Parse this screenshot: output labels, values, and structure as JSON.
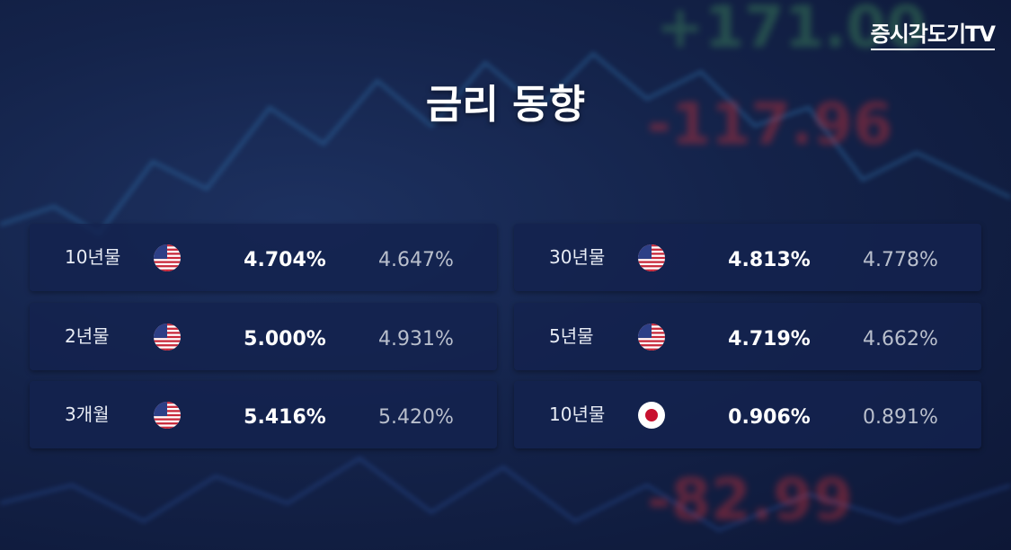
{
  "logo": "증시각도기TV",
  "title": "금리 동향",
  "background_numbers": [
    "+171.00",
    "-117.96",
    "-82.99"
  ],
  "cards": [
    {
      "term": "10년물",
      "current": "4.704%",
      "previous": "4.647%"
    },
    {
      "term": "2년물",
      "current": "5.000%",
      "previous": "4.931%"
    },
    {
      "term": "3개월",
      "current": "5.416%",
      "previous": "5.420%"
    },
    {
      "term": "30년물",
      "current": "4.813%",
      "previous": "4.778%"
    },
    {
      "term": "5년물",
      "current": "4.719%",
      "previous": "4.662%"
    },
    {
      "term": "10년물",
      "current": "0.906%",
      "previous": "0.891%"
    }
  ]
}
